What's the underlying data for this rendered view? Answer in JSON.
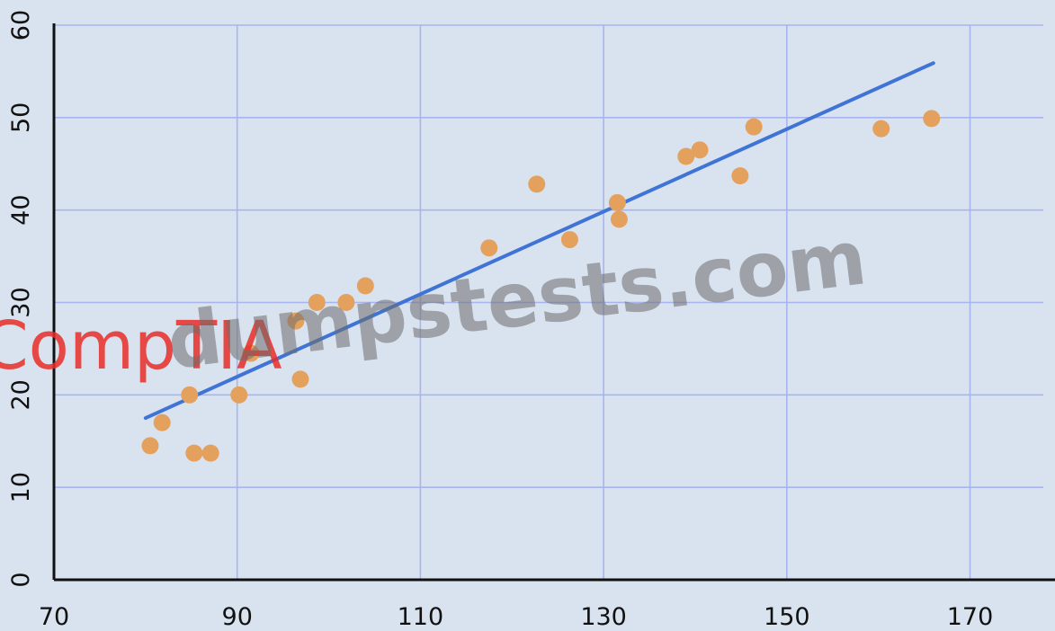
{
  "colors": {
    "background": "#d9e3ef",
    "grid": "#a8b4f0",
    "axis": "#111111",
    "points": "#e4a15e",
    "trendline": "#3f74d6"
  },
  "watermarks": {
    "dumps": "dumpstests.com",
    "comptia": "CompTIA"
  },
  "chart_data": {
    "type": "scatter",
    "title": "",
    "xlabel": "",
    "ylabel": "",
    "xlim": [
      70,
      178
    ],
    "ylim": [
      0,
      60
    ],
    "xticks": [
      70,
      90,
      110,
      130,
      150,
      170
    ],
    "yticks": [
      0,
      10,
      20,
      30,
      40,
      50,
      60
    ],
    "grid": true,
    "points": [
      {
        "x": 80.5,
        "y": 14.5
      },
      {
        "x": 81.8,
        "y": 17
      },
      {
        "x": 84.8,
        "y": 20
      },
      {
        "x": 85.3,
        "y": 13.7
      },
      {
        "x": 87.1,
        "y": 13.7
      },
      {
        "x": 90.2,
        "y": 20
      },
      {
        "x": 91.5,
        "y": 24.5
      },
      {
        "x": 96.4,
        "y": 28
      },
      {
        "x": 96.9,
        "y": 21.7
      },
      {
        "x": 98.7,
        "y": 30
      },
      {
        "x": 101.9,
        "y": 30
      },
      {
        "x": 104,
        "y": 31.8
      },
      {
        "x": 117.5,
        "y": 35.9
      },
      {
        "x": 122.7,
        "y": 42.8
      },
      {
        "x": 126.3,
        "y": 36.8
      },
      {
        "x": 131.5,
        "y": 40.8
      },
      {
        "x": 131.7,
        "y": 39
      },
      {
        "x": 139,
        "y": 45.8
      },
      {
        "x": 140.5,
        "y": 46.5
      },
      {
        "x": 144.9,
        "y": 43.7
      },
      {
        "x": 146.4,
        "y": 49
      },
      {
        "x": 160.3,
        "y": 48.8
      },
      {
        "x": 165.8,
        "y": 49.9
      }
    ],
    "trendline": {
      "x": [
        80,
        166
      ],
      "y": [
        17.5,
        55.9
      ]
    }
  }
}
